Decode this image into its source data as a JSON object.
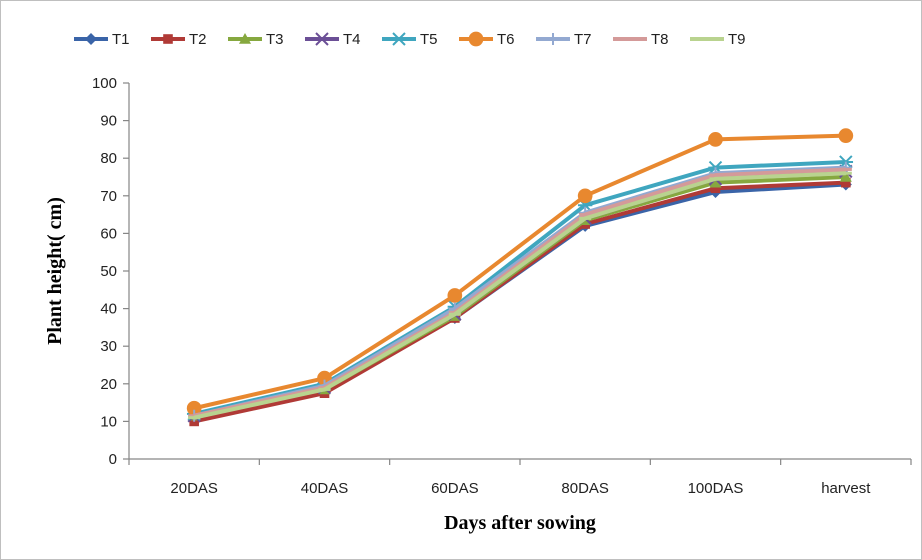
{
  "chart_data": {
    "type": "line",
    "title": "",
    "xlabel": "Days after sowing",
    "ylabel": "Plant height( cm)",
    "categories": [
      "20DAS",
      "40DAS",
      "60DAS",
      "80DAS",
      "100DAS",
      "harvest"
    ],
    "ylim": [
      0,
      100
    ],
    "yticks": [
      0,
      10,
      20,
      30,
      40,
      50,
      60,
      70,
      80,
      90,
      100
    ],
    "grid": false,
    "legend_position": "top",
    "series": [
      {
        "name": "T1",
        "color": "#3a64a8",
        "marker": "diamond",
        "values": [
          11.0,
          18.0,
          37.5,
          62.0,
          71.0,
          73.0
        ]
      },
      {
        "name": "T2",
        "color": "#b03a36",
        "marker": "square",
        "values": [
          10.0,
          17.5,
          37.5,
          62.5,
          72.0,
          73.5
        ]
      },
      {
        "name": "T3",
        "color": "#86a83f",
        "marker": "triangle",
        "values": [
          11.5,
          18.5,
          38.0,
          63.5,
          73.5,
          75.0
        ]
      },
      {
        "name": "T4",
        "color": "#6b4f96",
        "marker": "x",
        "values": [
          11.5,
          19.0,
          38.5,
          64.0,
          74.5,
          76.5
        ]
      },
      {
        "name": "T5",
        "color": "#3fa6bf",
        "marker": "star",
        "values": [
          12.0,
          20.0,
          40.5,
          67.5,
          77.5,
          79.0
        ]
      },
      {
        "name": "T6",
        "color": "#e8882f",
        "marker": "circle",
        "values": [
          13.5,
          21.5,
          43.5,
          70.0,
          85.0,
          86.0
        ]
      },
      {
        "name": "T7",
        "color": "#93a9d1",
        "marker": "plus",
        "values": [
          11.5,
          19.5,
          40.0,
          65.5,
          76.0,
          77.5
        ]
      },
      {
        "name": "T8",
        "color": "#d49a99",
        "marker": "dash",
        "values": [
          11.5,
          19.0,
          39.0,
          65.0,
          75.5,
          77.0
        ]
      },
      {
        "name": "T9",
        "color": "#b9d38f",
        "marker": "dash",
        "values": [
          11.0,
          18.5,
          38.5,
          64.0,
          74.5,
          76.0
        ]
      }
    ]
  }
}
